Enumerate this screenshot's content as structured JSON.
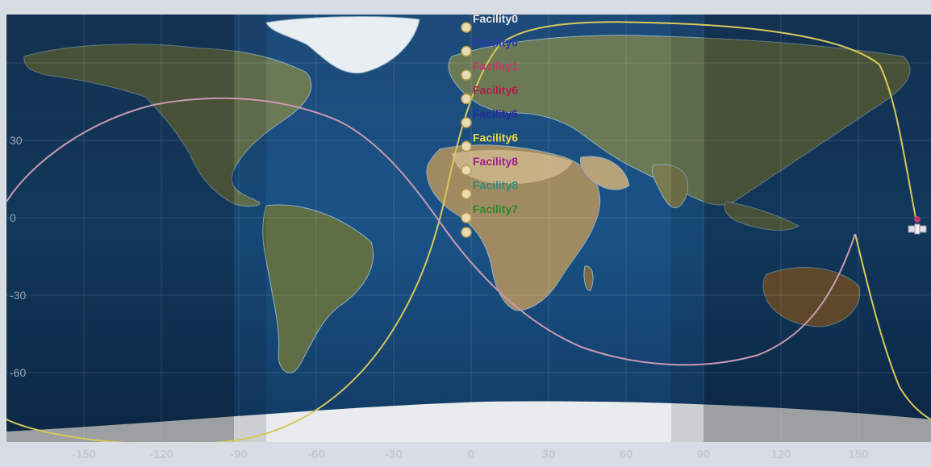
{
  "map": {
    "lat_labels": [
      {
        "lat": 30,
        "label": "30"
      },
      {
        "lat": 0,
        "label": "0"
      },
      {
        "lat": -30,
        "label": "-30"
      },
      {
        "lat": -60,
        "label": "-60"
      }
    ],
    "lon_labels": [
      {
        "lon": -150,
        "label": "-150"
      },
      {
        "lon": -120,
        "label": "-120"
      },
      {
        "lon": -90,
        "label": "-90"
      },
      {
        "lon": -60,
        "label": "-60"
      },
      {
        "lon": -30,
        "label": "-30"
      },
      {
        "lon": 0,
        "label": "0"
      },
      {
        "lon": 30,
        "label": "30"
      },
      {
        "lon": 60,
        "label": "60"
      },
      {
        "lon": 90,
        "label": "90"
      },
      {
        "lon": 120,
        "label": "120"
      },
      {
        "lon": 150,
        "label": "150"
      }
    ],
    "facilities": [
      {
        "label": "Facility0",
        "color": "#e8e8e8"
      },
      {
        "label": "Facility0",
        "color": "#2c3fa8"
      },
      {
        "label": "Facility1",
        "color": "#c23a6a"
      },
      {
        "label": "Facility6",
        "color": "#b0204a"
      },
      {
        "label": "Facility6",
        "color": "#2a2a9c"
      },
      {
        "label": "Facility6",
        "color": "#e8d84a"
      },
      {
        "label": "Facility8",
        "color": "#a0208c"
      },
      {
        "label": "Facility8",
        "color": "#3a8a78"
      },
      {
        "label": "Facility7",
        "color": "#2a8a2a"
      }
    ],
    "track_colors": {
      "yellow": "#d8c85a",
      "pink": "#c89ab0"
    },
    "satellite_icon": "satellite-icon"
  }
}
